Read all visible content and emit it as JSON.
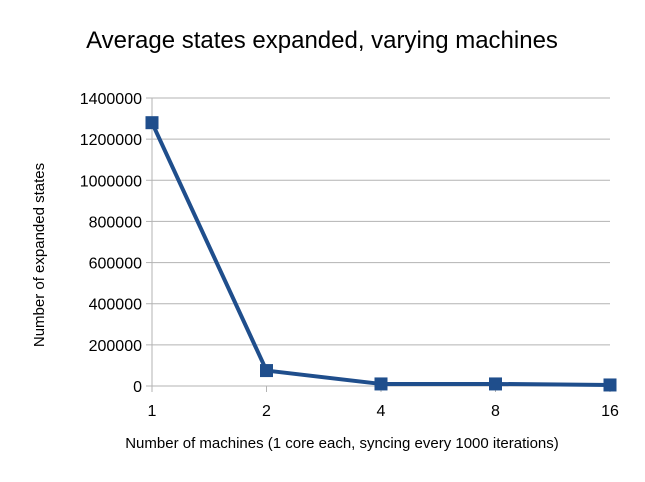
{
  "chart_data": {
    "type": "line",
    "title": "Average states expanded, varying machines",
    "xlabel": "Number of machines (1 core each, syncing every 1000 iterations)",
    "ylabel": "Number of expanded states",
    "categories": [
      "1",
      "2",
      "4",
      "8",
      "16"
    ],
    "y_ticks": [
      "0",
      "200000",
      "400000",
      "600000",
      "800000",
      "1000000",
      "1200000",
      "1400000"
    ],
    "ylim": [
      0,
      1400000
    ],
    "grid": true,
    "legend": "none",
    "series": [
      {
        "values": [
          1280000,
          75000,
          10000,
          10000,
          5000
        ],
        "color": "#1f4e8c",
        "marker": "square"
      }
    ]
  }
}
